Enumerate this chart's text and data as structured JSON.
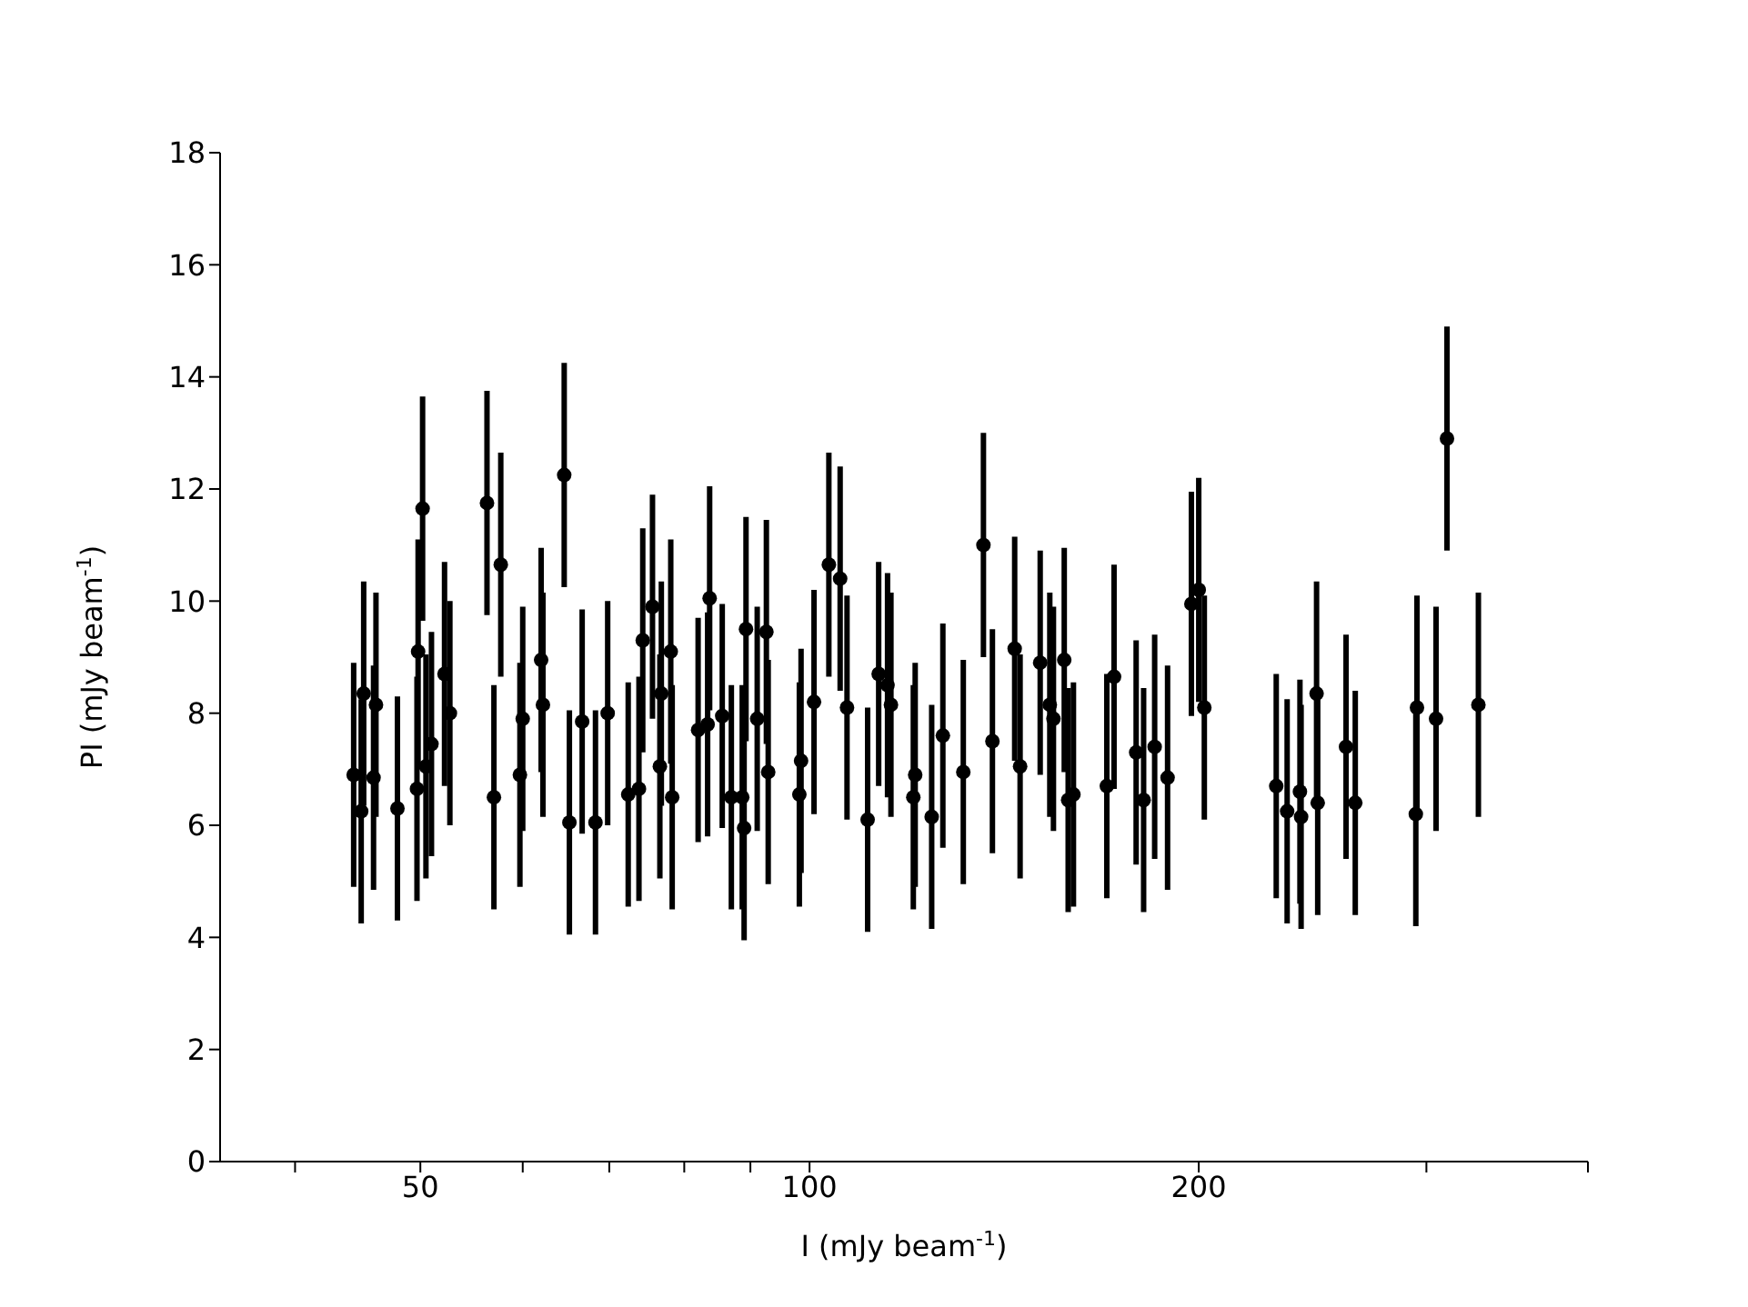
{
  "chart_data": {
    "type": "scatter",
    "xlabel": "I (mJy beam$^{-1}$)",
    "ylabel": "PI (mJy beam$^{-1}$)",
    "log": "x",
    "xlim": [
      35,
      400
    ],
    "xticks": [
      {
        "value": 40,
        "label": null
      },
      50,
      {
        "value": 60,
        "label": null
      },
      {
        "value": 70,
        "label": null
      },
      {
        "value": 80,
        "label": null
      },
      {
        "value": 90,
        "label": null
      },
      100,
      200,
      {
        "value": 300,
        "label": null
      },
      {
        "value": 400,
        "label": null
      }
    ],
    "ylim": [
      0,
      18
    ],
    "yticks": [
      0,
      2,
      4,
      6,
      8,
      10,
      12,
      14,
      16,
      18
    ],
    "grid": false,
    "legend": false,
    "marker": "circle",
    "series": [
      {
        "color": "#000000",
        "x": [
          44.4,
          45.2,
          45.0,
          46.2,
          46.0,
          48.0,
          50.2,
          49.8,
          49.7,
          50.5,
          51.0,
          52.2,
          52.7,
          56.3,
          57.7,
          57.0,
          60.0,
          59.7,
          62.0,
          62.2,
          64.6,
          65.2,
          66.7,
          68.3,
          69.8,
          72.4,
          73.8,
          74.3,
          75.6,
          76.8,
          76.6,
          78.1,
          78.3,
          83.7,
          82.0,
          83.4,
          85.6,
          87.0,
          89.0,
          88.7,
          89.3,
          91.1,
          92.6,
          92.9,
          103.5,
          105.6,
          100.8,
          106.9,
          98.5,
          98.2,
          110.9,
          113.1,
          114.9,
          115.6,
          120.7,
          120.3,
          124.3,
          126.8,
          131.5,
          136.3,
          138.5,
          144.1,
          145.5,
          150.8,
          153.4,
          154.4,
          157.4,
          158.5,
          160.0,
          169.8,
          172.0,
          178.9,
          181.3,
          184.9,
          189.2,
          197.4,
          200.0,
          202.0,
          229.6,
          234.1,
          239.5,
          240.0,
          246.7,
          247.2,
          260.0,
          264.3,
          295.0,
          294.4,
          305.2,
          311.2,
          329.1
        ],
        "values": [
          6.9,
          8.35,
          6.25,
          8.15,
          6.85,
          6.3,
          11.65,
          9.1,
          6.65,
          7.05,
          7.45,
          8.7,
          8.0,
          11.75,
          10.65,
          6.5,
          7.9,
          6.9,
          8.95,
          8.15,
          12.25,
          6.05,
          7.85,
          6.05,
          8.0,
          6.55,
          6.65,
          9.3,
          9.9,
          8.35,
          7.05,
          9.1,
          6.5,
          10.05,
          7.7,
          7.8,
          7.95,
          6.5,
          5.95,
          6.5,
          9.5,
          7.9,
          9.45,
          6.95,
          10.65,
          10.4,
          8.2,
          8.1,
          7.15,
          6.55,
          6.1,
          8.7,
          8.5,
          8.15,
          6.9,
          6.5,
          6.15,
          7.6,
          6.95,
          11.0,
          7.5,
          9.15,
          7.05,
          8.9,
          8.15,
          7.9,
          8.95,
          6.45,
          6.55,
          6.7,
          8.65,
          7.3,
          6.45,
          7.4,
          6.85,
          9.95,
          10.2,
          8.1,
          6.7,
          6.25,
          6.6,
          6.15,
          8.35,
          6.4,
          7.4,
          6.4,
          8.1,
          6.2,
          7.9,
          12.9,
          8.15
        ],
        "errors": [
          2,
          2,
          2,
          2,
          2,
          2,
          2,
          2,
          2,
          2,
          2,
          2,
          2,
          2,
          2,
          2,
          2,
          2,
          2,
          2,
          2,
          2,
          2,
          2,
          2,
          2,
          2,
          2,
          2,
          2,
          2,
          2,
          2,
          2,
          2,
          2,
          2,
          2,
          2,
          2,
          2,
          2,
          2,
          2,
          2,
          2,
          2,
          2,
          2,
          2,
          2,
          2,
          2,
          2,
          2,
          2,
          2,
          2,
          2,
          2,
          2,
          2,
          2,
          2,
          2,
          2,
          2,
          2,
          2,
          2,
          2,
          2,
          2,
          2,
          2,
          2,
          2,
          2,
          2,
          2,
          2,
          2,
          2,
          2,
          2,
          2,
          2,
          2,
          2,
          2,
          2
        ]
      }
    ]
  }
}
